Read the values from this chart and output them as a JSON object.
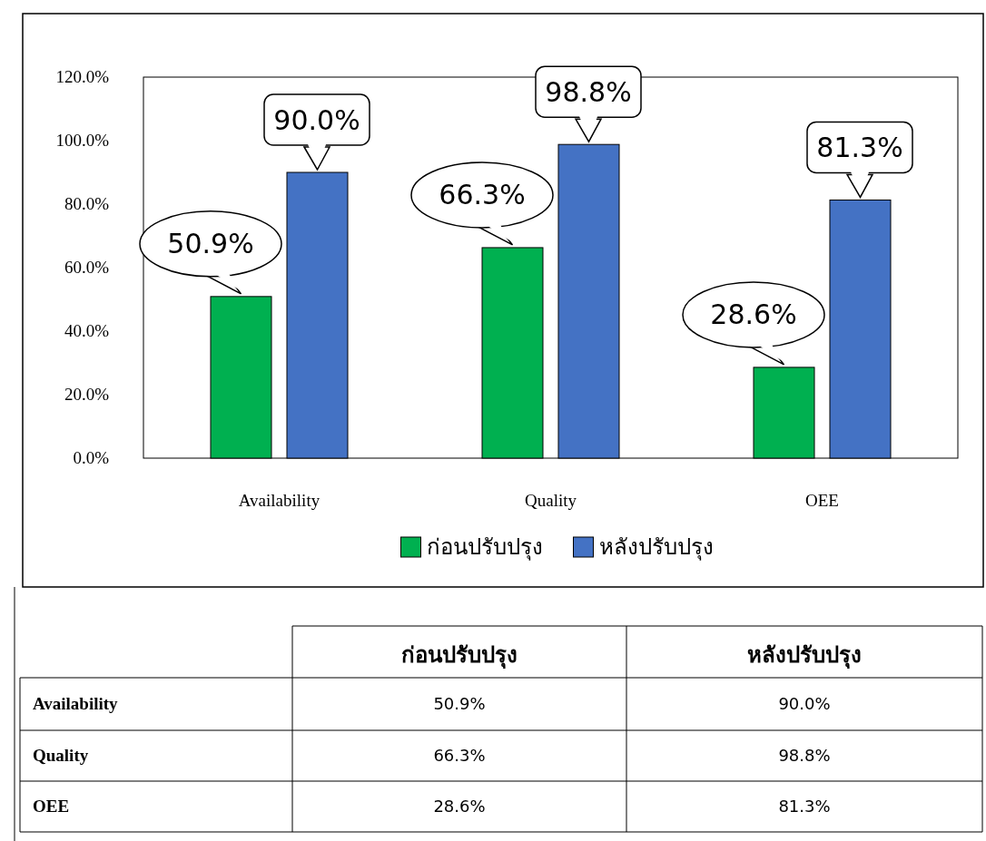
{
  "chart_data": {
    "type": "bar",
    "categories": [
      "Availability",
      "Quality",
      "OEE"
    ],
    "series": [
      {
        "name": "ก่อนปรับปรุง",
        "color": "#00b050",
        "values": [
          50.9,
          66.3,
          28.6
        ],
        "value_labels": [
          "50.9%",
          "66.3%",
          "28.6%"
        ]
      },
      {
        "name": "หลังปรับปรุง",
        "color": "#4472c4",
        "values": [
          90.0,
          98.8,
          81.3
        ],
        "value_labels": [
          "90.0%",
          "98.8%",
          "81.3%"
        ]
      }
    ],
    "ylim": [
      0,
      120
    ],
    "yticks": [
      {
        "value": 0,
        "label": "0.0%"
      },
      {
        "value": 20,
        "label": "20.0%"
      },
      {
        "value": 40,
        "label": "40.0%"
      },
      {
        "value": 60,
        "label": "60.0%"
      },
      {
        "value": 80,
        "label": "80.0%"
      },
      {
        "value": 100,
        "label": "100.0%"
      },
      {
        "value": 120,
        "label": "120.0%"
      }
    ],
    "grid": false,
    "legend": "bottom"
  }
}
